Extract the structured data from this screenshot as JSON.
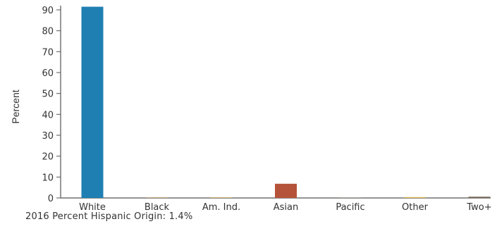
{
  "chart_data": {
    "type": "bar",
    "title": "",
    "xlabel": "",
    "ylabel": "Percent",
    "ylim": [
      0,
      90
    ],
    "yticks": [
      0,
      10,
      20,
      30,
      40,
      50,
      60,
      70,
      80,
      90
    ],
    "categories": [
      "White",
      "Black",
      "Am. Ind.",
      "Asian",
      "Pacific",
      "Other",
      "Two+"
    ],
    "values": [
      91.5,
      0.2,
      0.3,
      6.8,
      0.1,
      0.4,
      0.6
    ],
    "colors": [
      "#1f7fb2",
      "#b5824a",
      "#c9a56a",
      "#b5533a",
      "#9a8a6a",
      "#d9b44a",
      "#7a6a5a"
    ],
    "grid": false,
    "legend": "none"
  },
  "footnote": "2016 Percent Hispanic Origin: 1.4%"
}
